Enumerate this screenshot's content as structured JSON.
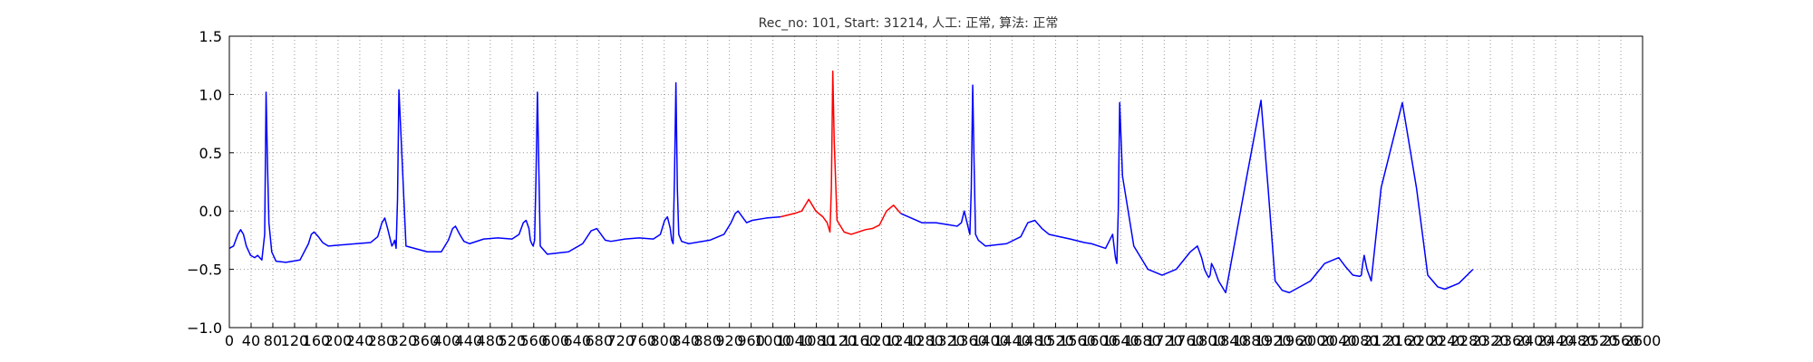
{
  "title": "Rec_no: 101, Start: 31214, 人工: 正常, 算法: 正常",
  "colors": {
    "normal": "#0000ff",
    "highlight": "#ff0000",
    "grid": "#999999",
    "axes": "#000000"
  },
  "chart_data": {
    "type": "line",
    "xlim": [
      0,
      1000
    ],
    "ylim": [
      -1.0,
      1.5
    ],
    "grid": true,
    "x_tick_labels": [
      "0",
      "40",
      "80",
      "120",
      "160",
      "200",
      "240",
      "280",
      "320",
      "360",
      "400",
      "440",
      "480",
      "520",
      "560",
      "600",
      "640",
      "680",
      "720",
      "760",
      "800",
      "840",
      "880",
      "920",
      "960",
      "1000",
      "1040",
      "1080",
      "1120",
      "1160",
      "1200",
      "1240",
      "1280",
      "1320",
      "1360",
      "1400",
      "1440",
      "1480",
      "1520",
      "1560",
      "1600",
      "1640",
      "1680",
      "1720",
      "1760",
      "1800",
      "1840",
      "1880",
      "1920",
      "1960",
      "2000",
      "2040",
      "2080",
      "2120",
      "2160",
      "2200",
      "2240",
      "2280",
      "2320",
      "2360",
      "2400",
      "2440",
      "2480",
      "2520",
      "2560",
      "2600"
    ],
    "y_ticks": [
      -1.0,
      -0.5,
      0.0,
      0.5,
      1.0,
      1.5
    ],
    "y_tick_labels": [
      "−1.0",
      "−0.5",
      "0.0",
      "0.5",
      "1.0",
      "1.5"
    ],
    "highlight_range": [
      400,
      480
    ],
    "series": [
      {
        "x": [
          0,
          3,
          6,
          8,
          10,
          12,
          15,
          18,
          20,
          23,
          25,
          26,
          27,
          28,
          30,
          33,
          40,
          50,
          56,
          58,
          60,
          63,
          66,
          70,
          80,
          90,
          100,
          105,
          108,
          110,
          112,
          114,
          115,
          116,
          117,
          118,
          119,
          120,
          125,
          140,
          150,
          155,
          158,
          160,
          163,
          166,
          170,
          180,
          190,
          200,
          205,
          208,
          210,
          212,
          213,
          214,
          215,
          216,
          217,
          218,
          220,
          225,
          240,
          250,
          256,
          260,
          263,
          266,
          270,
          280,
          290,
          300,
          305,
          308,
          310,
          312,
          313,
          314,
          315,
          316,
          317,
          318,
          320,
          325,
          340,
          350,
          355,
          358,
          360,
          363,
          366,
          370,
          380,
          390,
          400,
          405,
          410,
          415,
          420,
          423,
          425,
          426,
          427,
          428,
          430,
          432,
          435,
          440,
          450,
          455,
          460,
          465,
          470,
          475,
          490,
          500,
          510,
          515,
          518,
          520,
          522,
          523,
          524,
          525,
          526,
          527,
          528,
          530,
          535,
          550,
          560,
          565,
          570,
          575,
          580,
          595,
          605,
          610,
          615,
          620,
          625,
          626,
          627,
          628,
          629,
          630,
          632,
          640,
          650,
          660,
          670,
          680,
          685,
          688,
          690,
          692,
          693,
          694,
          695,
          697,
          700,
          705,
          720,
          730,
          735,
          740,
          745,
          750,
          765,
          775,
          785,
          790,
          795,
          800,
          801,
          802,
          803,
          805,
          808,
          815,
          830,
          840,
          848,
          855,
          860,
          870,
          880
        ],
        "y": [
          -0.32,
          -0.3,
          -0.2,
          -0.16,
          -0.2,
          -0.3,
          -0.38,
          -0.4,
          -0.38,
          -0.42,
          -0.2,
          1.02,
          0.4,
          -0.1,
          -0.35,
          -0.43,
          -0.44,
          -0.42,
          -0.28,
          -0.2,
          -0.18,
          -0.22,
          -0.27,
          -0.3,
          -0.29,
          -0.28,
          -0.27,
          -0.22,
          -0.1,
          -0.06,
          -0.15,
          -0.25,
          -0.3,
          -0.28,
          -0.25,
          -0.32,
          0.1,
          1.04,
          -0.3,
          -0.35,
          -0.35,
          -0.25,
          -0.15,
          -0.13,
          -0.2,
          -0.26,
          -0.28,
          -0.24,
          -0.23,
          -0.24,
          -0.2,
          -0.1,
          -0.08,
          -0.15,
          -0.25,
          -0.28,
          -0.3,
          -0.25,
          0.3,
          1.02,
          -0.3,
          -0.37,
          -0.35,
          -0.28,
          -0.17,
          -0.15,
          -0.2,
          -0.25,
          -0.26,
          -0.24,
          -0.23,
          -0.24,
          -0.2,
          -0.08,
          -0.05,
          -0.15,
          -0.25,
          -0.28,
          0.3,
          1.1,
          0.2,
          -0.2,
          -0.26,
          -0.28,
          -0.25,
          -0.2,
          -0.1,
          -0.02,
          0.0,
          -0.05,
          -0.1,
          -0.08,
          -0.06,
          -0.05,
          -0.02,
          0.0,
          0.1,
          0.0,
          -0.05,
          -0.1,
          -0.18,
          0.2,
          1.2,
          0.6,
          -0.08,
          -0.12,
          -0.18,
          -0.2,
          -0.16,
          -0.15,
          -0.12,
          0.0,
          0.05,
          -0.02,
          -0.1,
          -0.1,
          -0.12,
          -0.13,
          -0.1,
          0.0,
          -0.1,
          -0.15,
          -0.2,
          0.2,
          1.08,
          0.4,
          -0.2,
          -0.25,
          -0.3,
          -0.28,
          -0.22,
          -0.1,
          -0.08,
          -0.15,
          -0.2,
          -0.24,
          -0.27,
          -0.28,
          -0.3,
          -0.32,
          -0.2,
          -0.3,
          -0.4,
          -0.45,
          0.0,
          0.93,
          0.3,
          -0.3,
          -0.5,
          -0.55,
          -0.5,
          -0.35,
          -0.3,
          -0.4,
          -0.5,
          -0.55,
          -0.57,
          -0.55,
          -0.45,
          -0.5,
          -0.6,
          -0.7,
          0.3,
          0.95,
          0.2,
          -0.6,
          -0.68,
          -0.7,
          -0.6,
          -0.45,
          -0.4,
          -0.48,
          -0.55,
          -0.56,
          -0.55,
          -0.45,
          -0.38,
          -0.5,
          -0.6,
          0.2,
          0.93,
          0.2,
          -0.55,
          -0.65,
          -0.67,
          -0.62,
          -0.5
        ]
      }
    ]
  }
}
